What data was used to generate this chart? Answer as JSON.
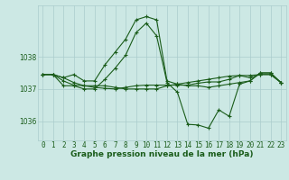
{
  "background_color": "#cce8e4",
  "grid_color": "#aacccc",
  "line_color": "#1a5c1a",
  "title": "Graphe pression niveau de la mer (hPa)",
  "title_fontsize": 6.5,
  "tick_fontsize": 5.5,
  "x_ticks": [
    0,
    1,
    2,
    3,
    4,
    5,
    6,
    7,
    8,
    9,
    10,
    11,
    12,
    13,
    14,
    15,
    16,
    17,
    18,
    19,
    20,
    21,
    22,
    23
  ],
  "ylim": [
    1035.4,
    1039.6
  ],
  "yticks": [
    1036,
    1037,
    1038
  ],
  "series": {
    "line1": [
      1037.45,
      1037.45,
      1037.35,
      1037.45,
      1037.25,
      1037.25,
      1037.75,
      1038.15,
      1038.55,
      1039.15,
      1039.25,
      1039.15,
      1037.25,
      1037.15,
      1037.1,
      1037.1,
      1037.05,
      1037.1,
      1037.15,
      1037.2,
      1037.25,
      1037.5,
      1037.5,
      1037.2
    ],
    "line2": [
      1037.45,
      1037.45,
      1037.1,
      1037.1,
      1037.0,
      1037.0,
      1037.3,
      1037.65,
      1038.05,
      1038.75,
      1039.05,
      1038.65,
      1037.2,
      1036.9,
      1035.9,
      1035.88,
      1035.78,
      1036.35,
      1036.15,
      1037.15,
      1037.25,
      1037.5,
      1037.5,
      1037.2
    ],
    "line3": [
      1037.45,
      1037.45,
      1037.35,
      1037.2,
      1037.1,
      1037.1,
      1037.1,
      1037.05,
      1037.0,
      1037.0,
      1037.0,
      1037.0,
      1037.1,
      1037.15,
      1037.2,
      1037.25,
      1037.3,
      1037.35,
      1037.4,
      1037.42,
      1037.35,
      1037.45,
      1037.45,
      1037.2
    ],
    "line4": [
      1037.45,
      1037.45,
      1037.25,
      1037.12,
      1037.1,
      1037.05,
      1037.02,
      1037.0,
      1037.05,
      1037.1,
      1037.12,
      1037.12,
      1037.12,
      1037.12,
      1037.12,
      1037.18,
      1037.22,
      1037.22,
      1037.3,
      1037.42,
      1037.42,
      1037.45,
      1037.45,
      1037.2
    ]
  }
}
